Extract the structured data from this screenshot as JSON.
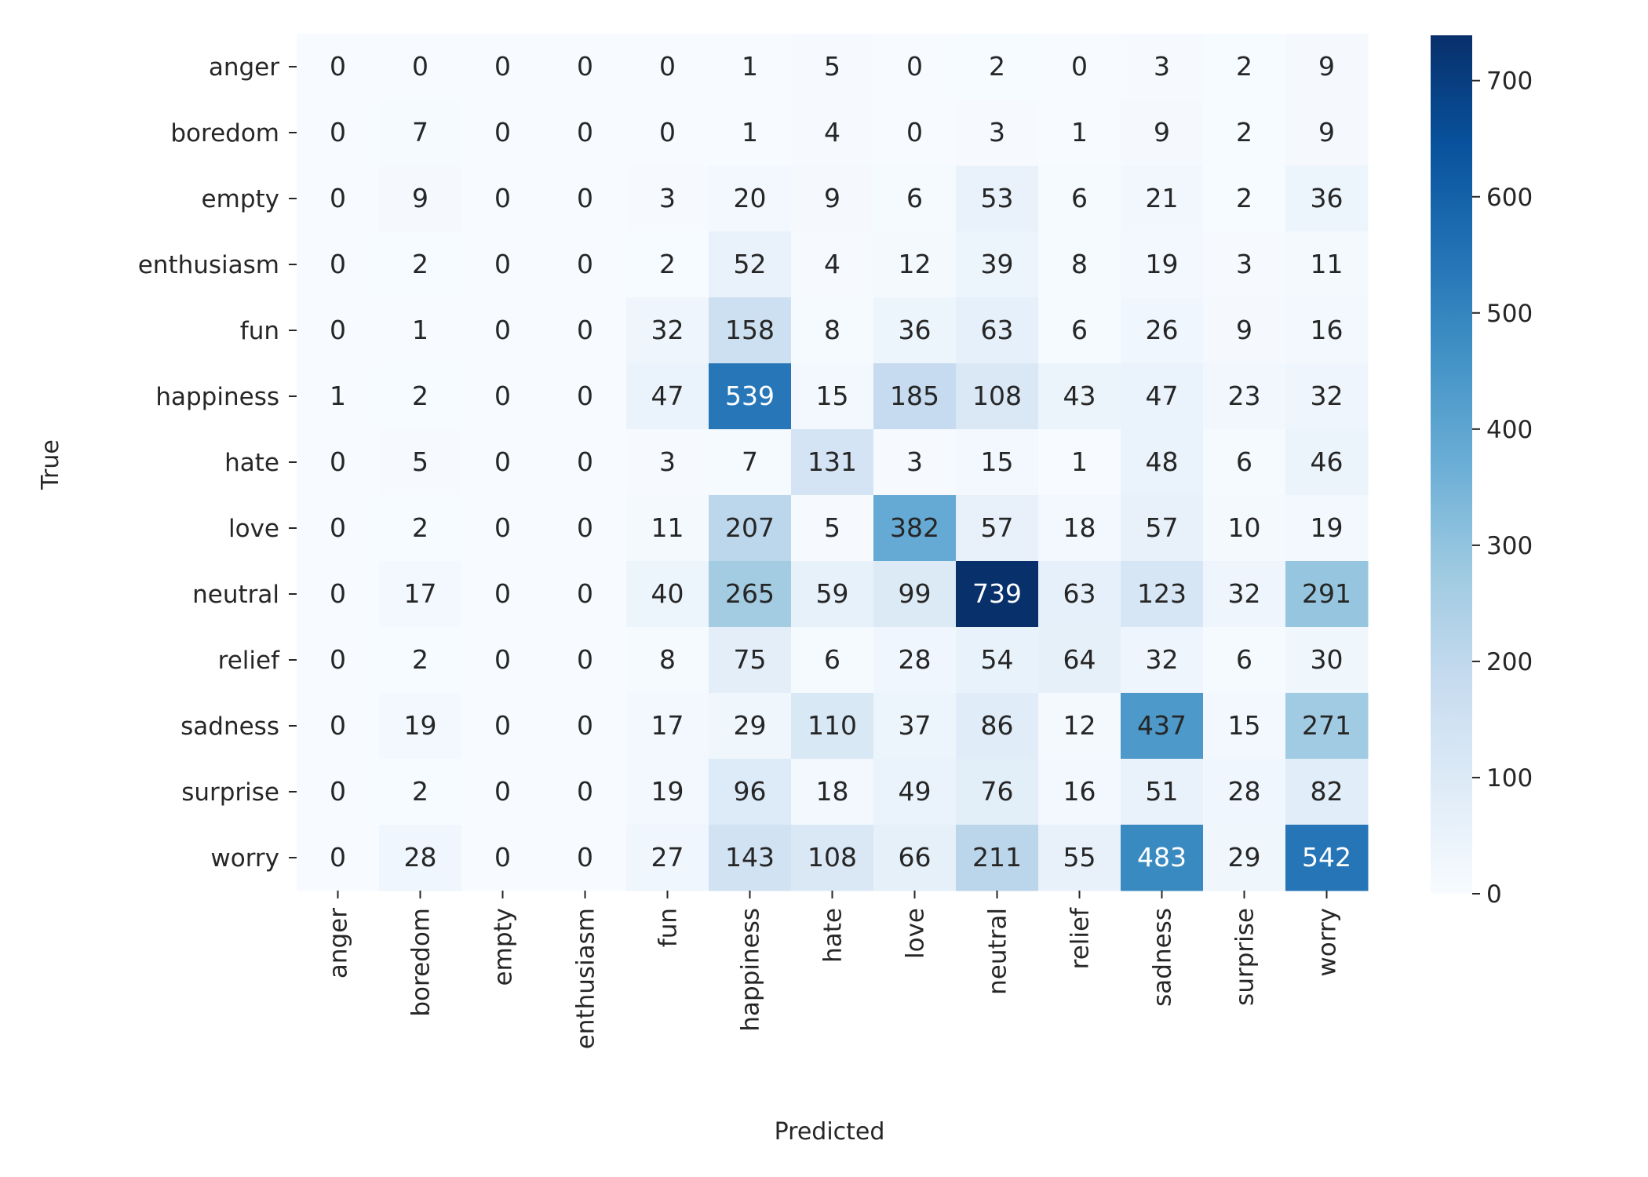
{
  "chart_data": {
    "type": "heatmap",
    "title": "",
    "xlabel": "Predicted",
    "ylabel": "True",
    "x_categories": [
      "anger",
      "boredom",
      "empty",
      "enthusiasm",
      "fun",
      "happiness",
      "hate",
      "love",
      "neutral",
      "relief",
      "sadness",
      "surprise",
      "worry"
    ],
    "y_categories": [
      "anger",
      "boredom",
      "empty",
      "enthusiasm",
      "fun",
      "happiness",
      "hate",
      "love",
      "neutral",
      "relief",
      "sadness",
      "surprise",
      "worry"
    ],
    "values": [
      [
        0,
        0,
        0,
        0,
        0,
        1,
        5,
        0,
        2,
        0,
        3,
        2,
        9
      ],
      [
        0,
        7,
        0,
        0,
        0,
        1,
        4,
        0,
        3,
        1,
        9,
        2,
        9
      ],
      [
        0,
        9,
        0,
        0,
        3,
        20,
        9,
        6,
        53,
        6,
        21,
        2,
        36
      ],
      [
        0,
        2,
        0,
        0,
        2,
        52,
        4,
        12,
        39,
        8,
        19,
        3,
        11
      ],
      [
        0,
        1,
        0,
        0,
        32,
        158,
        8,
        36,
        63,
        6,
        26,
        9,
        16
      ],
      [
        1,
        2,
        0,
        0,
        47,
        539,
        15,
        185,
        108,
        43,
        47,
        23,
        32
      ],
      [
        0,
        5,
        0,
        0,
        3,
        7,
        131,
        3,
        15,
        1,
        48,
        6,
        46
      ],
      [
        0,
        2,
        0,
        0,
        11,
        207,
        5,
        382,
        57,
        18,
        57,
        10,
        19
      ],
      [
        0,
        17,
        0,
        0,
        40,
        265,
        59,
        99,
        739,
        63,
        123,
        32,
        291
      ],
      [
        0,
        2,
        0,
        0,
        8,
        75,
        6,
        28,
        54,
        64,
        32,
        6,
        30
      ],
      [
        0,
        19,
        0,
        0,
        17,
        29,
        110,
        37,
        86,
        12,
        437,
        15,
        271
      ],
      [
        0,
        2,
        0,
        0,
        19,
        96,
        18,
        49,
        76,
        16,
        51,
        28,
        82
      ],
      [
        0,
        28,
        0,
        0,
        27,
        143,
        108,
        66,
        211,
        55,
        483,
        29,
        542
      ]
    ],
    "color_scale": {
      "name": "Blues",
      "min": 0,
      "max": 739,
      "stops": [
        "#f7fbff",
        "#deebf7",
        "#c6dbef",
        "#9ecae1",
        "#6baed6",
        "#4292c6",
        "#2171b5",
        "#08519c",
        "#08306b"
      ]
    },
    "colorbar": {
      "ticks": [
        0,
        100,
        200,
        300,
        400,
        500,
        600,
        700
      ]
    },
    "grid": false,
    "legend": "colorbar-right"
  }
}
